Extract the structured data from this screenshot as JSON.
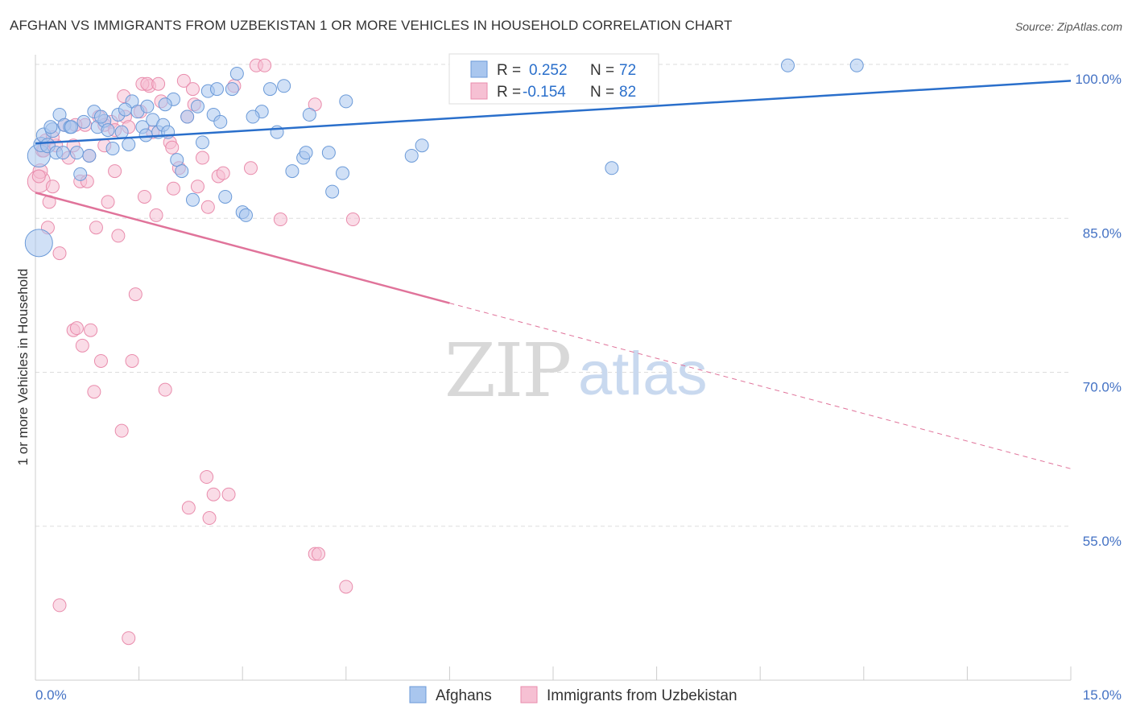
{
  "header": {
    "title": "AFGHAN VS IMMIGRANTS FROM UZBEKISTAN 1 OR MORE VEHICLES IN HOUSEHOLD CORRELATION CHART",
    "source": "Source: ZipAtlas.com"
  },
  "watermark": {
    "zip": "ZIP",
    "atlas": "atlas"
  },
  "colors": {
    "blue_fill": "#a9c6ee",
    "blue_stroke": "#6b9ad8",
    "blue_line": "#2a6fcb",
    "pink_fill": "#f6c0d3",
    "pink_stroke": "#e98cac",
    "pink_line": "#e0739a",
    "axis_text": "#4472c4",
    "grid": "#dddddd"
  },
  "legend": {
    "rows": [
      {
        "r_label": "R =",
        "r_value": "0.252",
        "n_label": "N =",
        "n_value": "72"
      },
      {
        "r_label": "R =",
        "r_value": "-0.154",
        "n_label": "N =",
        "n_value": "82"
      }
    ]
  },
  "chart_data": {
    "type": "scatter",
    "xlabel": "",
    "ylabel": "1 or more Vehicles in Household",
    "xlim": [
      0,
      15
    ],
    "ylim": [
      40,
      100
    ],
    "x_tick_labels": [
      "0.0%",
      "15.0%"
    ],
    "y_ticks": [
      100,
      85,
      70,
      55
    ],
    "y_tick_labels": [
      "100.0%",
      "85.0%",
      "70.0%",
      "55.0%"
    ],
    "grid": true,
    "series": [
      {
        "name": "Afghans",
        "color": "#a9c6ee",
        "trend": {
          "x": [
            0,
            15
          ],
          "y": [
            92.3,
            98.4
          ],
          "dashed_from": null
        },
        "points": [
          [
            0.05,
            91.1,
            14
          ],
          [
            0.08,
            92.2,
            9
          ],
          [
            0.12,
            93.1,
            9
          ],
          [
            0.18,
            92.1,
            9
          ],
          [
            0.25,
            93.6,
            9
          ],
          [
            0.3,
            91.4,
            8
          ],
          [
            0.35,
            95.1,
            8
          ],
          [
            0.42,
            94.1,
            8
          ],
          [
            0.5,
            93.9,
            8
          ],
          [
            0.6,
            91.4,
            8
          ],
          [
            0.65,
            89.3,
            8
          ],
          [
            0.7,
            94.4,
            8
          ],
          [
            0.78,
            91.1,
            8
          ],
          [
            0.85,
            95.4,
            8
          ],
          [
            0.9,
            93.9,
            8
          ],
          [
            1.0,
            94.5,
            8
          ],
          [
            1.05,
            93.6,
            8
          ],
          [
            1.12,
            91.8,
            8
          ],
          [
            1.2,
            95.1,
            8
          ],
          [
            1.25,
            93.4,
            8
          ],
          [
            1.35,
            92.2,
            8
          ],
          [
            1.4,
            96.4,
            8
          ],
          [
            1.48,
            95.4,
            8
          ],
          [
            1.55,
            93.9,
            8
          ],
          [
            1.62,
            95.9,
            8
          ],
          [
            1.7,
            94.6,
            8
          ],
          [
            1.78,
            93.4,
            8
          ],
          [
            1.85,
            94.1,
            8
          ],
          [
            1.92,
            93.4,
            8
          ],
          [
            2.0,
            96.6,
            8
          ],
          [
            2.05,
            90.7,
            8
          ],
          [
            2.12,
            89.6,
            8
          ],
          [
            2.2,
            94.9,
            8
          ],
          [
            2.28,
            86.8,
            8
          ],
          [
            2.35,
            95.9,
            8
          ],
          [
            2.42,
            92.4,
            8
          ],
          [
            2.5,
            97.4,
            8
          ],
          [
            2.58,
            95.1,
            8
          ],
          [
            2.68,
            94.4,
            8
          ],
          [
            2.75,
            87.1,
            8
          ],
          [
            2.85,
            97.6,
            8
          ],
          [
            2.92,
            99.1,
            8
          ],
          [
            3.0,
            85.6,
            8
          ],
          [
            3.05,
            85.3,
            8
          ],
          [
            3.28,
            95.4,
            8
          ],
          [
            3.4,
            97.6,
            8
          ],
          [
            3.5,
            93.4,
            8
          ],
          [
            3.6,
            97.9,
            8
          ],
          [
            3.72,
            89.6,
            8
          ],
          [
            3.88,
            90.9,
            8
          ],
          [
            3.92,
            91.4,
            8
          ],
          [
            3.97,
            95.1,
            8
          ],
          [
            4.25,
            91.4,
            8
          ],
          [
            4.3,
            87.6,
            8
          ],
          [
            4.45,
            89.4,
            8
          ],
          [
            4.5,
            96.4,
            8
          ],
          [
            5.45,
            91.1,
            8
          ],
          [
            5.6,
            92.1,
            8
          ],
          [
            8.35,
            89.9,
            8
          ],
          [
            8.85,
            99.9,
            8
          ],
          [
            10.9,
            99.9,
            8
          ],
          [
            11.9,
            99.9,
            8
          ],
          [
            0.05,
            82.6,
            17
          ],
          [
            0.22,
            93.9,
            8
          ],
          [
            0.52,
            93.9,
            8
          ],
          [
            0.95,
            94.9,
            8
          ],
          [
            1.3,
            95.6,
            8
          ],
          [
            1.6,
            93.1,
            8
          ],
          [
            2.63,
            97.6,
            8
          ],
          [
            3.15,
            94.9,
            8
          ],
          [
            1.88,
            96.1,
            8
          ],
          [
            0.4,
            91.4,
            8
          ]
        ]
      },
      {
        "name": "Immigrants from Uzbekistan",
        "color": "#f6c0d3",
        "trend": {
          "x": [
            0,
            15
          ],
          "y": [
            87.5,
            60.6
          ],
          "dashed_from": 6.0
        },
        "points": [
          [
            0.05,
            88.6,
            14
          ],
          [
            0.07,
            89.6,
            9
          ],
          [
            0.1,
            91.6,
            8
          ],
          [
            0.15,
            92.6,
            8
          ],
          [
            0.2,
            86.6,
            8
          ],
          [
            0.25,
            88.1,
            8
          ],
          [
            0.3,
            92.1,
            8
          ],
          [
            0.35,
            81.6,
            8
          ],
          [
            0.42,
            94.1,
            8
          ],
          [
            0.48,
            90.9,
            8
          ],
          [
            0.55,
            74.1,
            8
          ],
          [
            0.6,
            74.3,
            8
          ],
          [
            0.65,
            88.6,
            8
          ],
          [
            0.68,
            72.6,
            8
          ],
          [
            0.72,
            94.1,
            8
          ],
          [
            0.78,
            91.1,
            8
          ],
          [
            0.8,
            74.1,
            8
          ],
          [
            0.85,
            68.1,
            8
          ],
          [
            0.92,
            94.9,
            8
          ],
          [
            0.95,
            71.1,
            8
          ],
          [
            1.0,
            92.1,
            8
          ],
          [
            1.05,
            86.6,
            8
          ],
          [
            1.1,
            94.4,
            8
          ],
          [
            1.15,
            89.6,
            8
          ],
          [
            1.2,
            83.3,
            8
          ],
          [
            1.25,
            64.3,
            8
          ],
          [
            1.3,
            94.9,
            8
          ],
          [
            1.35,
            93.9,
            8
          ],
          [
            1.4,
            71.1,
            8
          ],
          [
            1.45,
            77.6,
            8
          ],
          [
            1.52,
            95.4,
            8
          ],
          [
            1.58,
            87.1,
            8
          ],
          [
            1.65,
            97.9,
            8
          ],
          [
            1.7,
            93.4,
            8
          ],
          [
            1.75,
            85.3,
            8
          ],
          [
            1.82,
            96.4,
            8
          ],
          [
            1.88,
            68.3,
            8
          ],
          [
            1.95,
            92.4,
            8
          ],
          [
            2.0,
            87.9,
            8
          ],
          [
            2.08,
            89.9,
            8
          ],
          [
            2.15,
            98.4,
            8
          ],
          [
            2.22,
            56.8,
            8
          ],
          [
            2.28,
            97.6,
            8
          ],
          [
            2.35,
            88.1,
            8
          ],
          [
            2.42,
            90.9,
            8
          ],
          [
            2.48,
            59.8,
            8
          ],
          [
            2.52,
            55.8,
            8
          ],
          [
            2.58,
            58.1,
            8
          ],
          [
            2.65,
            89.1,
            8
          ],
          [
            2.72,
            89.4,
            8
          ],
          [
            2.8,
            58.1,
            8
          ],
          [
            2.88,
            97.9,
            8
          ],
          [
            3.12,
            89.9,
            8
          ],
          [
            3.2,
            99.9,
            8
          ],
          [
            3.32,
            99.9,
            8
          ],
          [
            3.55,
            84.9,
            8
          ],
          [
            4.05,
            52.3,
            8
          ],
          [
            4.1,
            52.3,
            8
          ],
          [
            4.05,
            96.1,
            8
          ],
          [
            4.5,
            49.1,
            8
          ],
          [
            4.6,
            84.9,
            8
          ],
          [
            6.1,
            97.9,
            8
          ],
          [
            0.35,
            47.3,
            8
          ],
          [
            1.35,
            44.1,
            8
          ],
          [
            0.05,
            89.1,
            8
          ],
          [
            0.18,
            84.1,
            8
          ],
          [
            0.88,
            84.1,
            8
          ],
          [
            1.0,
            94.1,
            8
          ],
          [
            0.55,
            92.1,
            8
          ],
          [
            1.15,
            93.6,
            8
          ],
          [
            1.55,
            98.1,
            8
          ],
          [
            1.98,
            91.9,
            8
          ],
          [
            2.3,
            96.1,
            8
          ],
          [
            2.5,
            86.1,
            8
          ],
          [
            1.62,
            98.1,
            8
          ],
          [
            0.58,
            94.1,
            8
          ],
          [
            0.25,
            92.9,
            8
          ],
          [
            0.12,
            91.6,
            8
          ],
          [
            1.78,
            98.1,
            8
          ],
          [
            1.28,
            96.9,
            8
          ],
          [
            2.2,
            94.9,
            8
          ],
          [
            0.75,
            88.6,
            8
          ]
        ]
      }
    ]
  }
}
